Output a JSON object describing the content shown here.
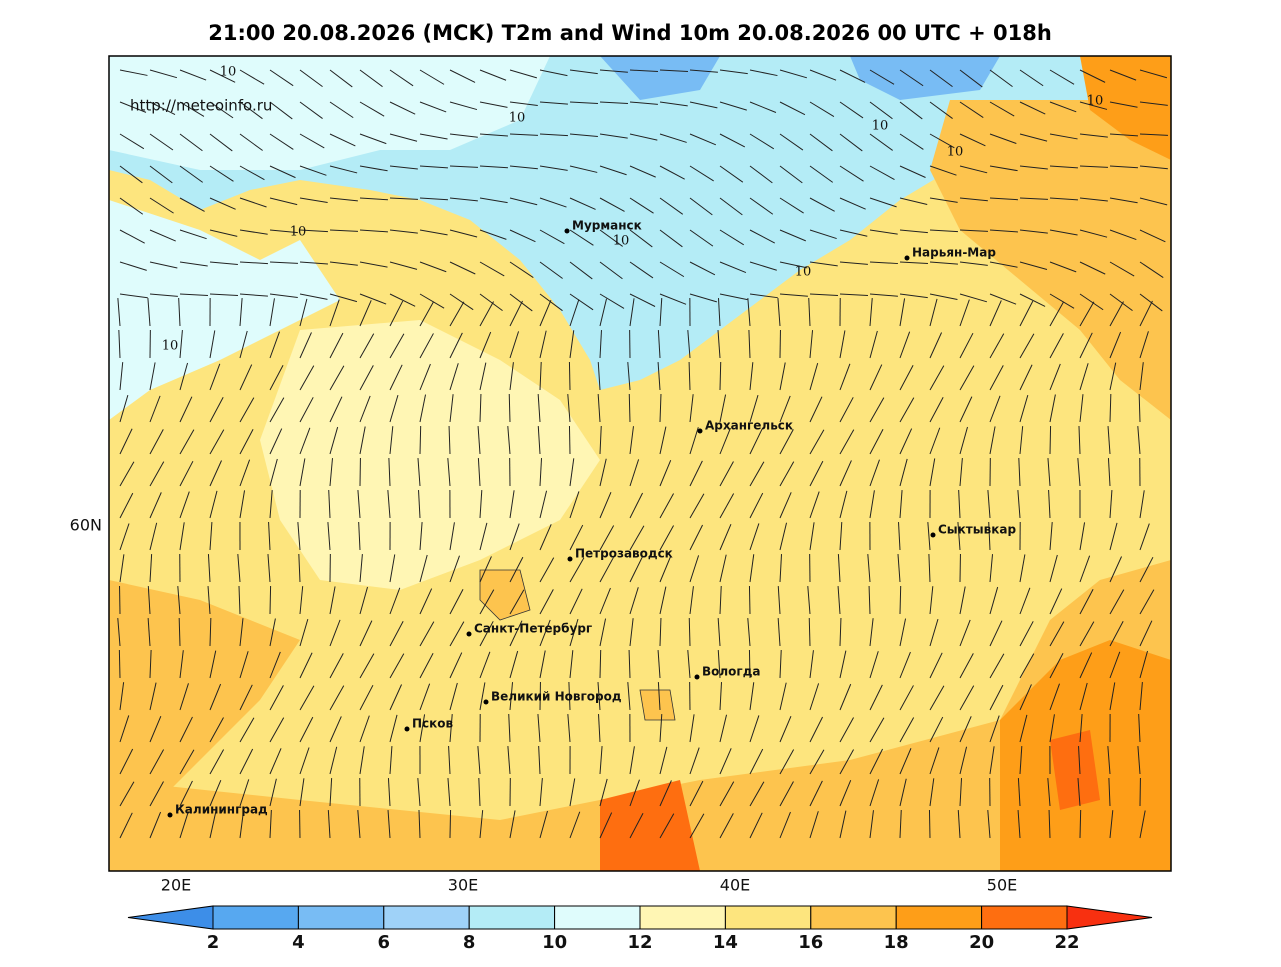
{
  "header": {
    "title": "21:00 20.08.2026 (MCK) T2m and Wind 10m 20.08.2026 00 UTC + 018h"
  },
  "map": {
    "url": "http://meteoinfo.ru",
    "cities": [
      "Мурманск",
      "Нарьян-Мар",
      "Архангельск",
      "Сыктывкар",
      "Петрозаводск",
      "Санкт-Петербург",
      "Вологда",
      "Великий Новгород",
      "Псков",
      "Калининград"
    ],
    "lat_labels": [
      "60N"
    ],
    "lon_labels": [
      "20E",
      "30E",
      "40E",
      "50E"
    ],
    "contour_labels": [
      "10",
      "10",
      "10",
      "10",
      "10",
      "10",
      "10",
      "10",
      "10"
    ]
  },
  "colorbar": {
    "ticks": [
      2,
      4,
      6,
      8,
      10,
      12,
      14,
      16,
      18,
      20,
      22
    ],
    "colors": [
      "#3d8ee8",
      "#57a8f0",
      "#78bcf4",
      "#9fd2f8",
      "#b4ecf6",
      "#dffcfc",
      "#fff6b4",
      "#fde57e",
      "#fdc44e",
      "#fe9e18",
      "#fe6e10",
      "#f83010"
    ]
  }
}
